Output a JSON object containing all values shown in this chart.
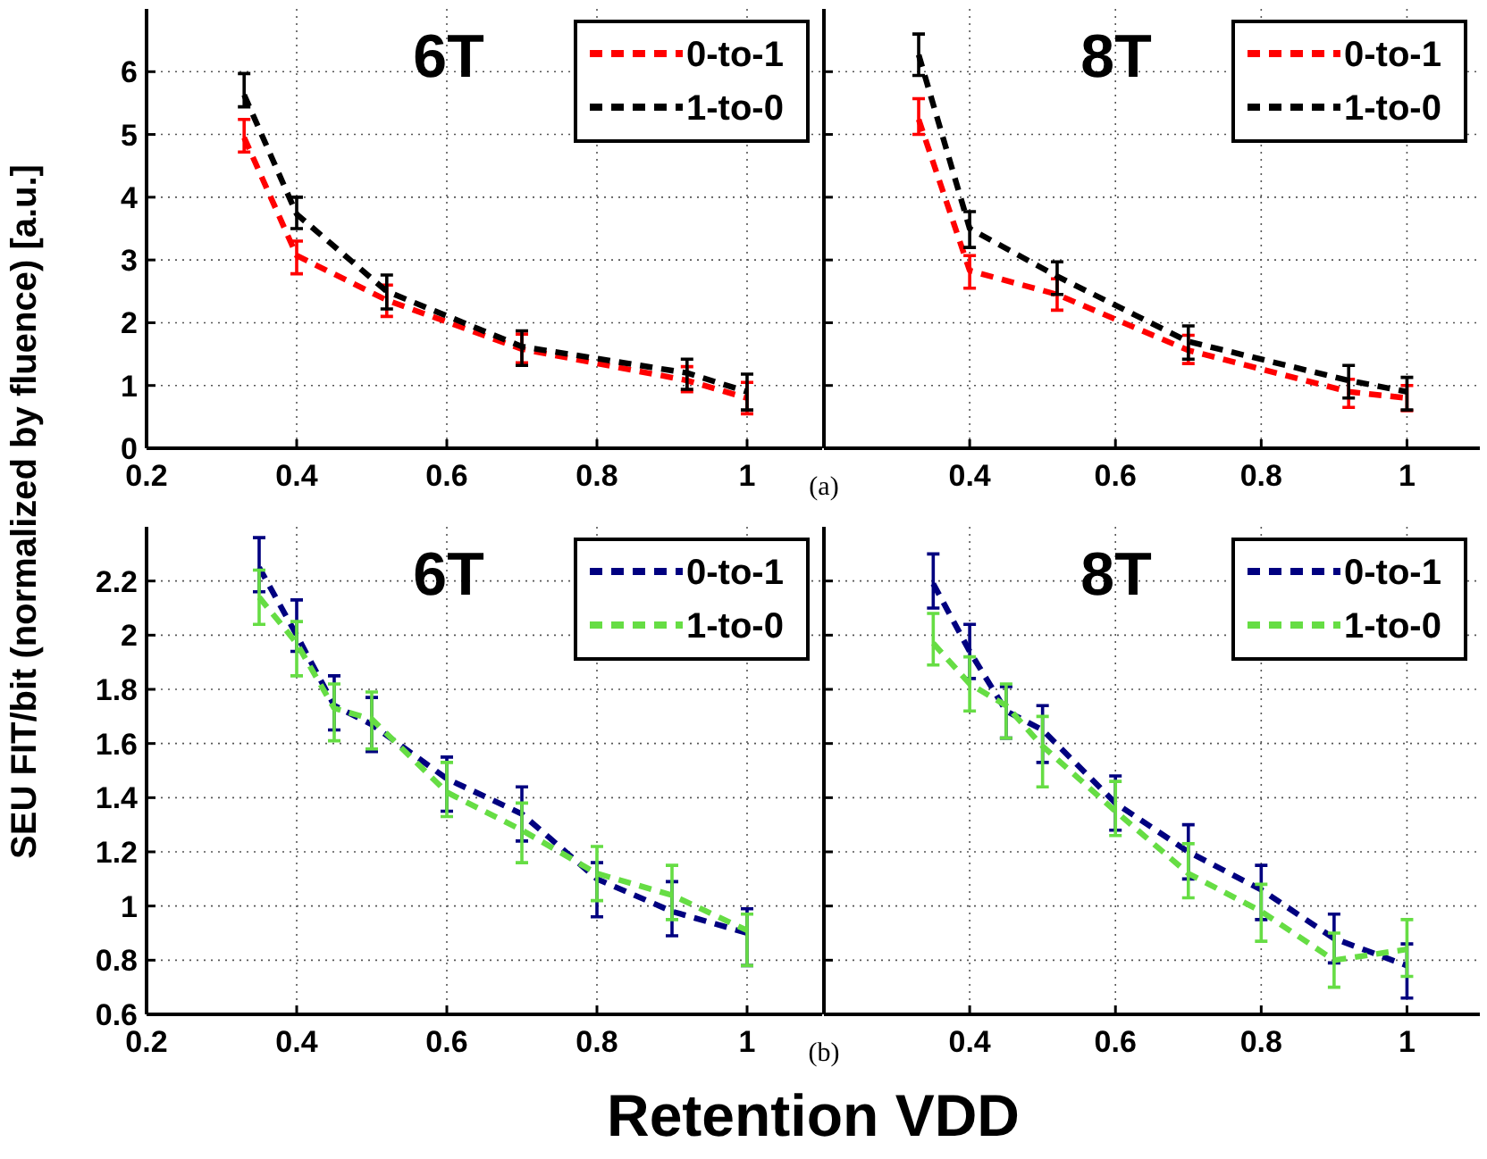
{
  "chart_data": [
    {
      "type": "line",
      "title": "6T",
      "ylabel": "SEU FIT/bit (normalized by fluence) [a.u.]",
      "annotations": [
        "(a)"
      ],
      "xlim": [
        0.2,
        1.1
      ],
      "xticks": [
        0.2,
        0.4,
        0.6,
        0.8,
        1
      ],
      "ylim": [
        0,
        7
      ],
      "yticks": [
        0,
        1,
        2,
        3,
        4,
        5,
        6
      ],
      "grid": true,
      "legend": "top right",
      "line_style": "dashed",
      "marker": "none",
      "tick_labels": true,
      "x": [
        0.33,
        0.4,
        0.52,
        0.7,
        0.92,
        1
      ],
      "series": [
        {
          "name": "0-to-1",
          "color": "#ff0000",
          "values": [
            4.95,
            3.07,
            2.36,
            1.58,
            1.08,
            0.8
          ],
          "errors": [
            [
              4.72,
              5.24
            ],
            [
              2.78,
              3.3
            ],
            [
              2.1,
              2.6
            ],
            [
              1.36,
              1.82
            ],
            [
              0.9,
              1.3
            ],
            [
              0.55,
              1.05
            ]
          ]
        },
        {
          "name": "1-to-0",
          "color": "#000000",
          "values": [
            5.63,
            3.73,
            2.5,
            1.62,
            1.2,
            0.9
          ],
          "errors": [
            [
              5.44,
              5.97
            ],
            [
              3.5,
              4.0
            ],
            [
              2.22,
              2.76
            ],
            [
              1.32,
              1.87
            ],
            [
              0.94,
              1.42
            ],
            [
              0.61,
              1.18
            ]
          ]
        }
      ]
    },
    {
      "type": "line",
      "title": "8T",
      "xlim": [
        0.2,
        1.1
      ],
      "xticks": [
        0.4,
        0.6,
        0.8,
        1
      ],
      "ylim": [
        0,
        7
      ],
      "yticks": [
        0,
        1,
        2,
        3,
        4,
        5,
        6
      ],
      "grid": true,
      "legend": "top right",
      "line_style": "dashed",
      "marker": "none",
      "tick_labels": "x",
      "x": [
        0.33,
        0.4,
        0.52,
        0.7,
        0.92,
        1
      ],
      "series": [
        {
          "name": "0-to-1",
          "color": "#ff0000",
          "values": [
            5.24,
            2.83,
            2.45,
            1.56,
            0.9,
            0.8
          ],
          "errors": [
            [
              5.0,
              5.57
            ],
            [
              2.55,
              3.07
            ],
            [
              2.2,
              2.7
            ],
            [
              1.35,
              1.8
            ],
            [
              0.65,
              1.1
            ],
            [
              0.6,
              1.0
            ]
          ]
        },
        {
          "name": "1-to-0",
          "color": "#000000",
          "values": [
            6.27,
            3.5,
            2.74,
            1.7,
            1.08,
            0.9
          ],
          "errors": [
            [
              5.94,
              6.6
            ],
            [
              3.2,
              3.77
            ],
            [
              2.45,
              2.97
            ],
            [
              1.42,
              1.95
            ],
            [
              0.8,
              1.32
            ],
            [
              0.61,
              1.13
            ]
          ]
        }
      ]
    },
    {
      "type": "line",
      "title": "6T",
      "xlabel": "Retention VDD",
      "annotations": [
        "(b)"
      ],
      "xlim": [
        0.2,
        1.1
      ],
      "xticks": [
        0.2,
        0.4,
        0.6,
        0.8,
        1
      ],
      "ylim": [
        0.6,
        2.4
      ],
      "yticks": [
        0.6,
        0.8,
        1,
        1.2,
        1.4,
        1.6,
        1.8,
        2,
        2.2
      ],
      "grid": true,
      "legend": "top right",
      "line_style": "dashed",
      "marker": "none",
      "tick_labels": true,
      "x": [
        0.35,
        0.4,
        0.45,
        0.5,
        0.6,
        0.7,
        0.8,
        0.9,
        1
      ],
      "series": [
        {
          "name": "0-to-1",
          "color": "#000080",
          "values": [
            2.25,
            2.0,
            1.74,
            1.67,
            1.47,
            1.34,
            1.1,
            0.98,
            0.9
          ],
          "errors": [
            [
              2.16,
              2.36
            ],
            [
              1.94,
              2.13
            ],
            [
              1.65,
              1.85
            ],
            [
              1.57,
              1.77
            ],
            [
              1.35,
              1.55
            ],
            [
              1.24,
              1.44
            ],
            [
              0.96,
              1.16
            ],
            [
              0.89,
              1.09
            ],
            [
              0.78,
              0.99
            ]
          ]
        },
        {
          "name": "1-to-0",
          "color": "#66dd44",
          "values": [
            2.14,
            1.97,
            1.73,
            1.69,
            1.42,
            1.28,
            1.12,
            1.04,
            0.91
          ],
          "errors": [
            [
              2.04,
              2.24
            ],
            [
              1.85,
              2.05
            ],
            [
              1.61,
              1.82
            ],
            [
              1.58,
              1.79
            ],
            [
              1.33,
              1.53
            ],
            [
              1.16,
              1.38
            ],
            [
              1.02,
              1.22
            ],
            [
              0.95,
              1.15
            ],
            [
              0.78,
              0.97
            ]
          ]
        }
      ]
    },
    {
      "type": "line",
      "title": "8T",
      "xlim": [
        0.2,
        1.1
      ],
      "xticks": [
        0.4,
        0.6,
        0.8,
        1
      ],
      "ylim": [
        0.6,
        2.4
      ],
      "yticks": [
        0.6,
        0.8,
        1,
        1.2,
        1.4,
        1.6,
        1.8,
        2,
        2.2
      ],
      "grid": true,
      "legend": "top right",
      "line_style": "dashed",
      "marker": "none",
      "tick_labels": "x",
      "x": [
        0.35,
        0.4,
        0.45,
        0.5,
        0.6,
        0.7,
        0.8,
        0.9,
        1
      ],
      "series": [
        {
          "name": "0-to-1",
          "color": "#000080",
          "values": [
            2.19,
            1.94,
            1.72,
            1.65,
            1.38,
            1.2,
            1.06,
            0.88,
            0.78
          ],
          "errors": [
            [
              2.1,
              2.3
            ],
            [
              1.84,
              2.04
            ],
            [
              1.62,
              1.81
            ],
            [
              1.53,
              1.74
            ],
            [
              1.28,
              1.48
            ],
            [
              1.1,
              1.3
            ],
            [
              0.95,
              1.15
            ],
            [
              0.79,
              0.97
            ],
            [
              0.66,
              0.86
            ]
          ]
        },
        {
          "name": "1-to-0",
          "color": "#66dd44",
          "values": [
            1.97,
            1.82,
            1.74,
            1.59,
            1.35,
            1.12,
            0.98,
            0.8,
            0.84
          ],
          "errors": [
            [
              1.89,
              2.08
            ],
            [
              1.72,
              1.92
            ],
            [
              1.62,
              1.82
            ],
            [
              1.44,
              1.7
            ],
            [
              1.26,
              1.46
            ],
            [
              1.03,
              1.23
            ],
            [
              0.87,
              1.08
            ],
            [
              0.7,
              0.9
            ],
            [
              0.74,
              0.95
            ]
          ]
        }
      ]
    }
  ]
}
